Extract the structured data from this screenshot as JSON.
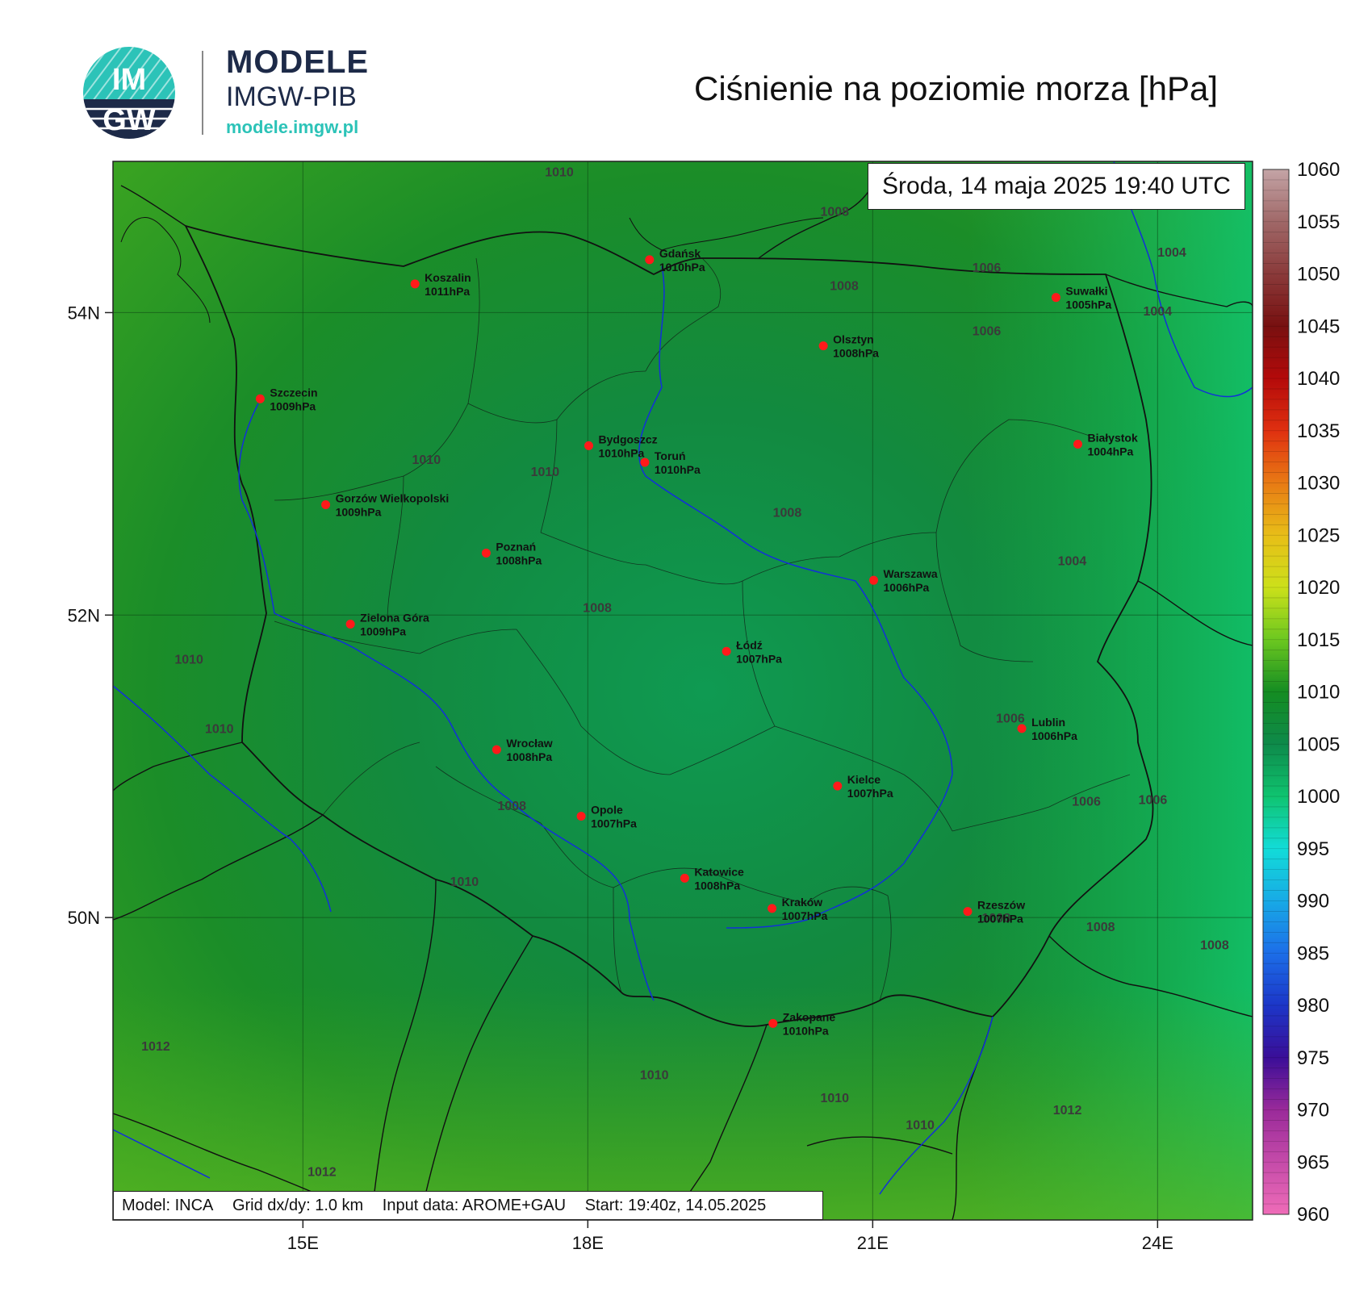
{
  "logo": {
    "monogram_top": "IM",
    "monogram_bottom": "GW",
    "title": "MODELE",
    "subtitle": "IMGW-PIB",
    "url": "modele.imgw.pl"
  },
  "title": "Ciśnienie na poziomie morza [hPa]",
  "datetime": "Środa, 14 maja 2025 19:40 UTC",
  "footer": {
    "model": "Model: INCA",
    "grid": "Grid dx/dy: 1.0 km",
    "input": "Input data: AROME+GAU",
    "start": "Start: 19:40z, 14.05.2025"
  },
  "map": {
    "lon_range": [
      13.0,
      25.0
    ],
    "lat_range": [
      48.0,
      55.0
    ],
    "lon_ticks": [
      {
        "lon": 15,
        "label": "15E"
      },
      {
        "lon": 18,
        "label": "18E"
      },
      {
        "lon": 21,
        "label": "21E"
      },
      {
        "lon": 24,
        "label": "24E"
      }
    ],
    "lat_ticks": [
      {
        "lat": 54,
        "label": "54N"
      },
      {
        "lat": 52,
        "label": "52N"
      },
      {
        "lat": 50,
        "label": "50N"
      }
    ],
    "colorbar": {
      "min": 960,
      "max": 1060,
      "labels": [
        "1060",
        "1055",
        "1050",
        "1045",
        "1040",
        "1035",
        "1030",
        "1025",
        "1020",
        "1015",
        "1010",
        "1005",
        "1000",
        "995",
        "990",
        "985",
        "980",
        "975",
        "970",
        "965",
        "960"
      ],
      "stops": [
        {
          "v": 960,
          "c": "#ef6cb8"
        },
        {
          "v": 970,
          "c": "#9a2a9a"
        },
        {
          "v": 975,
          "c": "#3a0e98"
        },
        {
          "v": 980,
          "c": "#1c36c8"
        },
        {
          "v": 985,
          "c": "#1c6ee8"
        },
        {
          "v": 990,
          "c": "#18aae6"
        },
        {
          "v": 995,
          "c": "#12dcd8"
        },
        {
          "v": 1000,
          "c": "#0fc470"
        },
        {
          "v": 1005,
          "c": "#0e8a4a"
        },
        {
          "v": 1010,
          "c": "#148c22"
        },
        {
          "v": 1015,
          "c": "#6cc820"
        },
        {
          "v": 1020,
          "c": "#cce01a"
        },
        {
          "v": 1025,
          "c": "#e8be18"
        },
        {
          "v": 1030,
          "c": "#e87a14"
        },
        {
          "v": 1035,
          "c": "#e03010"
        },
        {
          "v": 1040,
          "c": "#b40a0a"
        },
        {
          "v": 1045,
          "c": "#781010"
        },
        {
          "v": 1050,
          "c": "#8a3a3a"
        },
        {
          "v": 1055,
          "c": "#a06868"
        },
        {
          "v": 1060,
          "c": "#c4a4a6"
        }
      ]
    },
    "cities": [
      {
        "name": "Koszalin",
        "value": "1011hPa",
        "lon": 16.18,
        "lat": 54.19
      },
      {
        "name": "Gdańsk",
        "value": "1010hPa",
        "lon": 18.65,
        "lat": 54.35
      },
      {
        "name": "Suwałki",
        "value": "1005hPa",
        "lon": 22.93,
        "lat": 54.1
      },
      {
        "name": "Olsztyn",
        "value": "1008hPa",
        "lon": 20.48,
        "lat": 53.78
      },
      {
        "name": "Szczecin",
        "value": "1009hPa",
        "lon": 14.55,
        "lat": 53.43
      },
      {
        "name": "Białystok",
        "value": "1004hPa",
        "lon": 23.16,
        "lat": 53.13
      },
      {
        "name": "Bydgoszcz",
        "value": "1010hPa",
        "lon": 18.01,
        "lat": 53.12
      },
      {
        "name": "Toruń",
        "value": "1010hPa",
        "lon": 18.6,
        "lat": 53.01
      },
      {
        "name": "Gorzów Wielkopolski",
        "value": "1009hPa",
        "lon": 15.24,
        "lat": 52.73
      },
      {
        "name": "Poznań",
        "value": "1008hPa",
        "lon": 16.93,
        "lat": 52.41
      },
      {
        "name": "Warszawa",
        "value": "1006hPa",
        "lon": 21.01,
        "lat": 52.23
      },
      {
        "name": "Zielona Góra",
        "value": "1009hPa",
        "lon": 15.5,
        "lat": 51.94
      },
      {
        "name": "Łódź",
        "value": "1007hPa",
        "lon": 19.46,
        "lat": 51.76
      },
      {
        "name": "Lublin",
        "value": "1006hPa",
        "lon": 22.57,
        "lat": 51.25
      },
      {
        "name": "Wrocław",
        "value": "1008hPa",
        "lon": 17.04,
        "lat": 51.11
      },
      {
        "name": "Kielce",
        "value": "1007hPa",
        "lon": 20.63,
        "lat": 50.87
      },
      {
        "name": "Opole",
        "value": "1007hPa",
        "lon": 17.93,
        "lat": 50.67
      },
      {
        "name": "Katowice",
        "value": "1008hPa",
        "lon": 19.02,
        "lat": 50.26
      },
      {
        "name": "Kraków",
        "value": "1007hPa",
        "lon": 19.94,
        "lat": 50.06
      },
      {
        "name": "Rzeszów",
        "value": "1007hPa",
        "lon": 22.0,
        "lat": 50.04
      },
      {
        "name": "Zakopane",
        "value": "1010hPa",
        "lon": 19.95,
        "lat": 49.3
      }
    ],
    "isobar_labels": [
      {
        "text": "1010",
        "lon": 17.7,
        "lat": 54.9
      },
      {
        "text": "1008",
        "lon": 20.6,
        "lat": 54.64
      },
      {
        "text": "1008",
        "lon": 20.7,
        "lat": 54.15
      },
      {
        "text": "1006",
        "lon": 22.2,
        "lat": 54.27
      },
      {
        "text": "1004",
        "lon": 24.15,
        "lat": 54.37
      },
      {
        "text": "1004",
        "lon": 24.0,
        "lat": 53.98
      },
      {
        "text": "1006",
        "lon": 22.2,
        "lat": 53.85
      },
      {
        "text": "1010",
        "lon": 16.3,
        "lat": 53.0
      },
      {
        "text": "1010",
        "lon": 17.55,
        "lat": 52.92
      },
      {
        "text": "1008",
        "lon": 20.1,
        "lat": 52.65
      },
      {
        "text": "1004",
        "lon": 23.1,
        "lat": 52.33
      },
      {
        "text": "1008",
        "lon": 18.1,
        "lat": 52.02
      },
      {
        "text": "1010",
        "lon": 13.8,
        "lat": 51.68
      },
      {
        "text": "1010",
        "lon": 14.12,
        "lat": 51.22
      },
      {
        "text": "1006",
        "lon": 22.45,
        "lat": 51.29
      },
      {
        "text": "1008",
        "lon": 17.2,
        "lat": 50.71
      },
      {
        "text": "1006",
        "lon": 23.25,
        "lat": 50.74
      },
      {
        "text": "1006",
        "lon": 23.95,
        "lat": 50.75
      },
      {
        "text": "1010",
        "lon": 16.7,
        "lat": 50.21
      },
      {
        "text": "1008",
        "lon": 22.3,
        "lat": 49.97
      },
      {
        "text": "1008",
        "lon": 23.4,
        "lat": 49.91
      },
      {
        "text": "1008",
        "lon": 24.6,
        "lat": 49.79
      },
      {
        "text": "1012",
        "lon": 13.45,
        "lat": 49.12
      },
      {
        "text": "1010",
        "lon": 18.7,
        "lat": 48.93
      },
      {
        "text": "1010",
        "lon": 20.6,
        "lat": 48.78
      },
      {
        "text": "1010",
        "lon": 21.5,
        "lat": 48.6
      },
      {
        "text": "1012",
        "lon": 23.05,
        "lat": 48.7
      },
      {
        "text": "1012",
        "lon": 15.2,
        "lat": 48.29
      }
    ]
  }
}
